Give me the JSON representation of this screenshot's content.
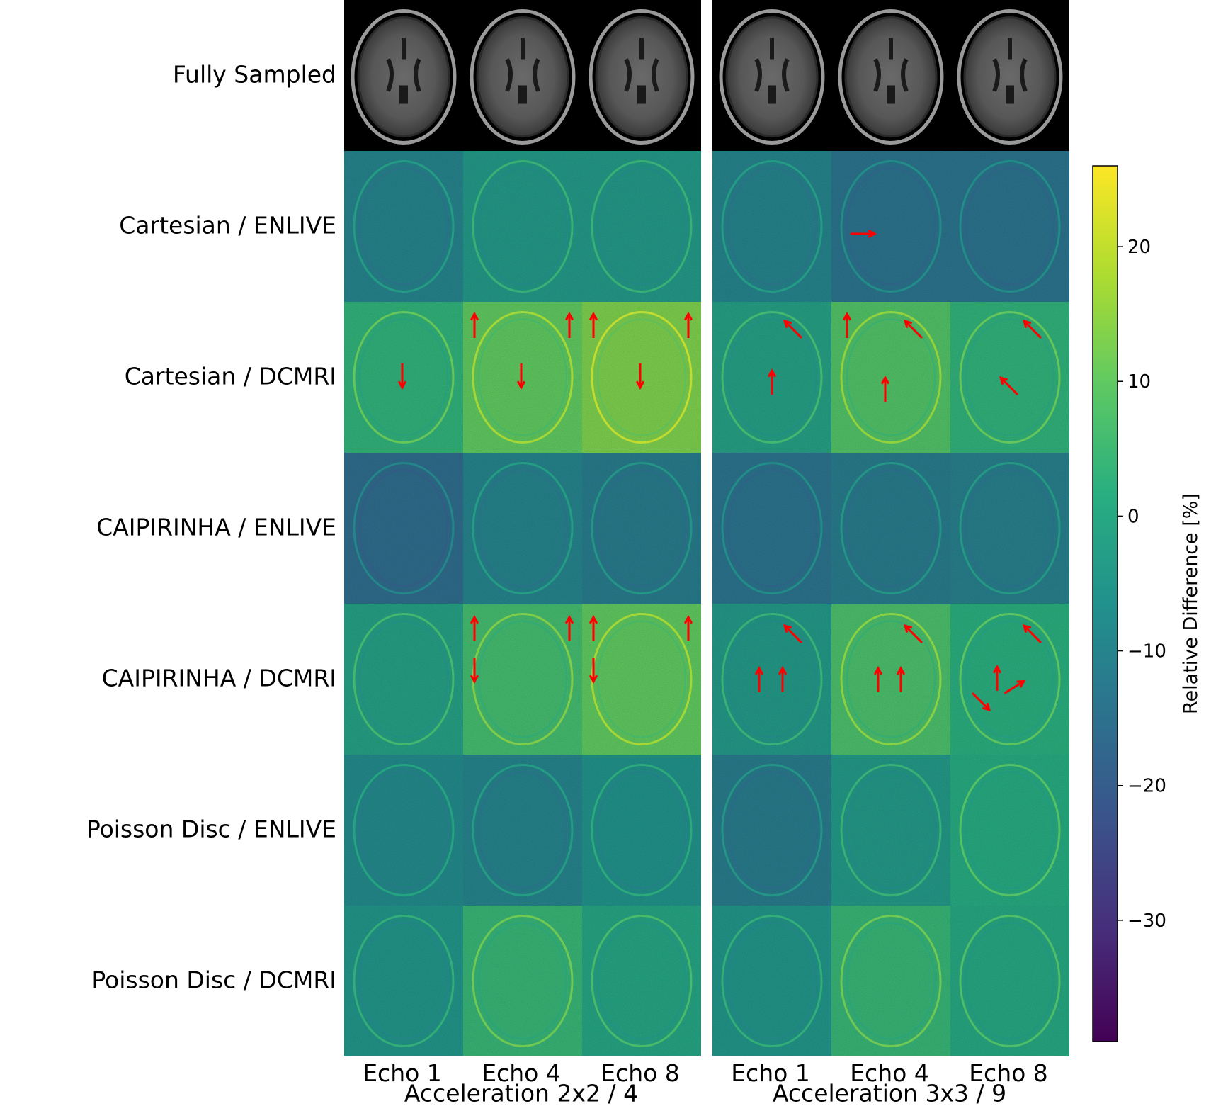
{
  "figure": {
    "row_labels": [
      "Fully Sampled",
      "Cartesian / ENLIVE",
      "Cartesian / DCMRI",
      "CAIPIRINHA / ENLIVE",
      "CAIPIRINHA / DCMRI",
      "Poisson Disc / ENLIVE",
      "Poisson Disc / DCMRI"
    ],
    "column_labels": [
      "Echo 1",
      "Echo 4",
      "Echo 8",
      "Echo 1",
      "Echo 4",
      "Echo 8"
    ],
    "group_labels": [
      "Acceleration 2x2 / 4",
      "Acceleration 3x3 / 9"
    ],
    "colorbar": {
      "label": "Relative Difference [%]",
      "min": -39,
      "max": 26,
      "ticks": [
        20,
        10,
        0,
        -10,
        -20,
        -30
      ],
      "tick_labels": [
        "20",
        "10",
        "0",
        "−10",
        "−20",
        "−30"
      ],
      "colormap": "viridis"
    },
    "difference_values": [
      [
        -10,
        -4,
        -4,
        -10,
        -14,
        -14
      ],
      [
        3,
        10,
        13,
        -2,
        8,
        3
      ],
      [
        -16,
        -10,
        -12,
        -14,
        -12,
        -11
      ],
      [
        -2,
        6,
        10,
        -4,
        7,
        2
      ],
      [
        -8,
        -10,
        -6,
        -12,
        -4,
        1
      ],
      [
        -5,
        4,
        -1,
        -5,
        4,
        0
      ]
    ],
    "arrow_color": "#ff0000",
    "arrow_panels": [
      [
        1,
        0
      ],
      [
        1,
        1
      ],
      [
        1,
        2
      ],
      [
        1,
        3
      ],
      [
        1,
        4
      ],
      [
        1,
        5
      ],
      [
        0,
        4
      ]
    ]
  }
}
